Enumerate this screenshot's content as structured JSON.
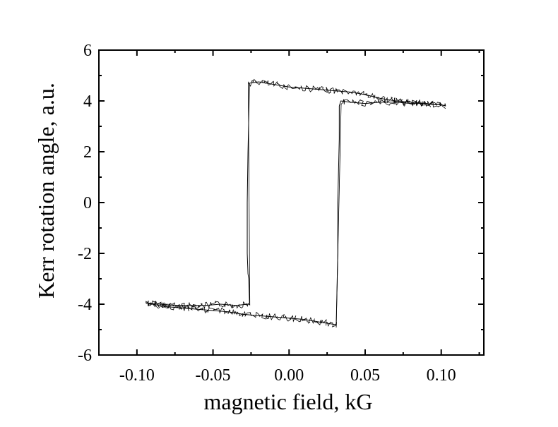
{
  "chart_data": {
    "type": "line",
    "title": "",
    "xlabel": "magnetic field, kG",
    "ylabel": "Kerr rotation angle, a.u.",
    "xlim": [
      -0.125,
      0.128
    ],
    "ylim": [
      -6,
      6
    ],
    "x_ticks": [
      -0.1,
      -0.05,
      0.0,
      0.05,
      0.1
    ],
    "x_tick_labels": [
      "-0.10",
      "-0.05",
      "0.00",
      "0.05",
      "0.10"
    ],
    "y_ticks": [
      -6,
      -4,
      -2,
      0,
      2,
      4,
      6
    ],
    "y_tick_labels": [
      "-6",
      "-4",
      "-2",
      "0",
      "2",
      "4",
      "6"
    ],
    "grid": false,
    "legend": "none",
    "line_color": "#000000",
    "series": [
      {
        "x": [
          -0.094,
          -0.085,
          -0.075,
          -0.065,
          -0.055,
          -0.045,
          -0.035,
          -0.027,
          -0.026,
          -0.0265,
          -0.027,
          -0.0275,
          -0.0275,
          -0.027,
          -0.026,
          -0.02,
          -0.01,
          0.0,
          0.01,
          0.02,
          0.03,
          0.04,
          0.05,
          0.06,
          0.07,
          0.08,
          0.09,
          0.095,
          0.1,
          0.103
        ],
        "y": [
          -3.95,
          -4.0,
          -4.05,
          -4.05,
          -4.05,
          -4.0,
          -4.05,
          -4.0,
          -3.95,
          -3.0,
          -2.8,
          -2.0,
          0.0,
          2.0,
          4.7,
          4.75,
          4.65,
          4.55,
          4.5,
          4.45,
          4.4,
          4.35,
          4.25,
          4.1,
          4.0,
          3.95,
          3.9,
          3.85,
          3.85,
          3.8
        ]
      },
      {
        "x": [
          0.103,
          0.1,
          0.095,
          0.09,
          0.08,
          0.07,
          0.06,
          0.05,
          0.04,
          0.034,
          0.033,
          0.033,
          0.032,
          0.032,
          0.031,
          0.03,
          0.025,
          0.02,
          0.01,
          0.0,
          -0.01,
          -0.02,
          -0.03,
          -0.04,
          -0.05,
          -0.06,
          -0.07,
          -0.08,
          -0.09,
          -0.094
        ],
        "y": [
          3.8,
          3.85,
          3.85,
          3.9,
          3.9,
          3.95,
          3.95,
          3.9,
          3.95,
          4.0,
          3.8,
          2.5,
          0.0,
          -2.0,
          -4.8,
          -4.8,
          -4.75,
          -4.7,
          -4.6,
          -4.55,
          -4.5,
          -4.45,
          -4.4,
          -4.3,
          -4.25,
          -4.2,
          -4.15,
          -4.1,
          -4.0,
          -3.95
        ]
      }
    ]
  }
}
